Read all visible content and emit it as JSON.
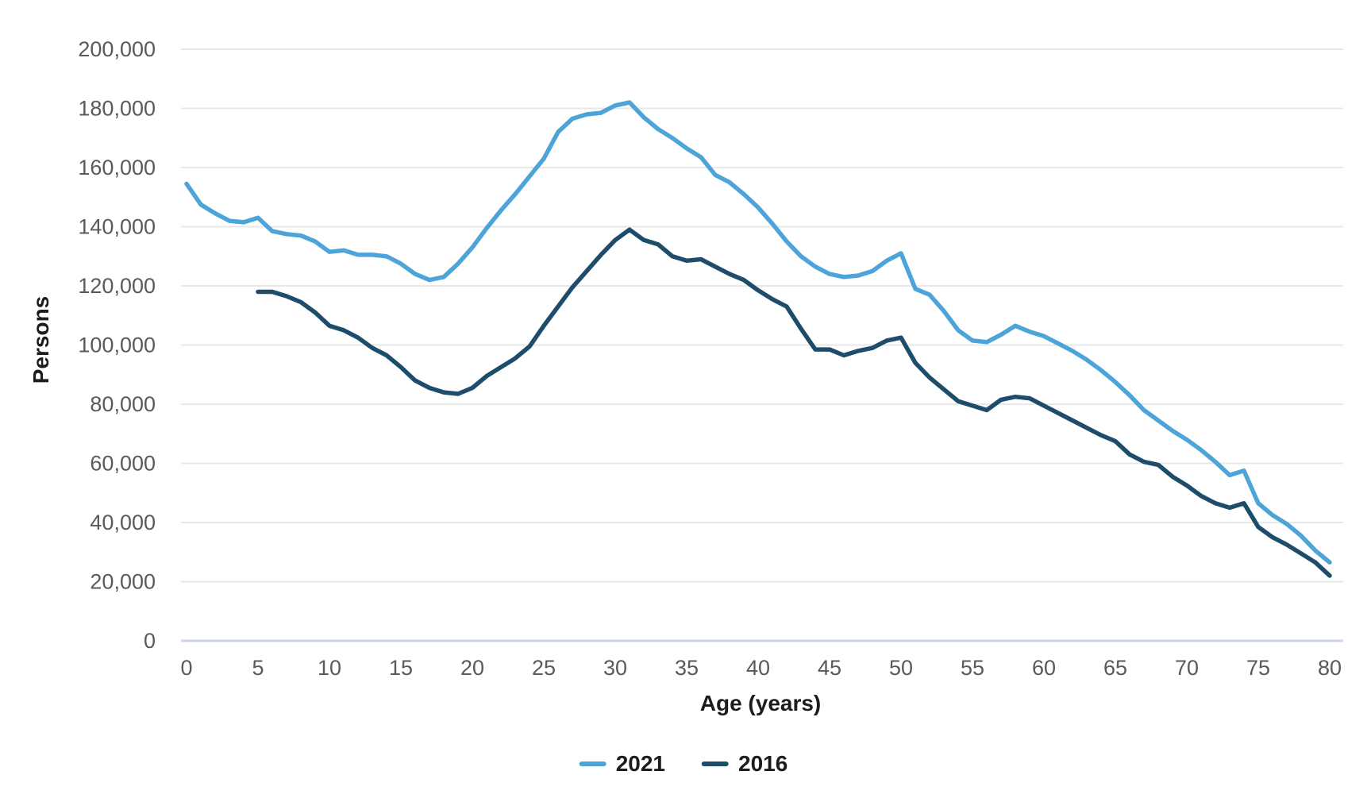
{
  "chart_data": {
    "type": "line",
    "title": "",
    "xlabel": "Age (years)",
    "ylabel": "Persons",
    "x_min": 0,
    "x_max": 80,
    "x_tick_step": 5,
    "x_ticks": [
      "0",
      "5",
      "10",
      "15",
      "20",
      "25",
      "30",
      "35",
      "40",
      "45",
      "50",
      "55",
      "60",
      "65",
      "70",
      "75",
      "80"
    ],
    "ylim": [
      0,
      200000
    ],
    "y_tick_step": 20000,
    "y_ticks": [
      "0",
      "20,000",
      "40,000",
      "60,000",
      "80,000",
      "100,000",
      "120,000",
      "140,000",
      "160,000",
      "180,000",
      "200,000"
    ],
    "grid": "horizontal",
    "legend_position": "bottom-center",
    "colors": {
      "gridline": "#e8e8e8",
      "zero_line": "#ccd5e8",
      "tick_text": "#5a5a5a",
      "title_text": "#1c1c1c"
    },
    "series": [
      {
        "name": "2021",
        "color": "#4da4d8",
        "values": [
          154500,
          147500,
          144500,
          142000,
          141500,
          143000,
          138500,
          137500,
          137000,
          135000,
          131500,
          132000,
          130500,
          130500,
          130000,
          127500,
          124000,
          122000,
          123000,
          127500,
          133000,
          139500,
          145500,
          151000,
          157000,
          163000,
          172000,
          176500,
          178000,
          178500,
          181000,
          182000,
          177000,
          173000,
          170000,
          166500,
          163500,
          157500,
          155000,
          151000,
          146500,
          141000,
          135000,
          130000,
          126500,
          124000,
          123000,
          123500,
          125000,
          128500,
          131000,
          119000,
          117000,
          111500,
          105000,
          101500,
          101000,
          103500,
          106500,
          104500,
          103000,
          100500,
          98000,
          95000,
          91500,
          87500,
          83000,
          78000,
          74500,
          71000,
          68000,
          64500,
          60500,
          56000,
          57500,
          46500,
          42500,
          39500,
          35500,
          30500,
          26500
        ]
      },
      {
        "name": "2016",
        "color": "#1d4d6b",
        "values": [
          null,
          null,
          null,
          null,
          null,
          118000,
          118000,
          116500,
          114500,
          111000,
          106500,
          105000,
          102500,
          99000,
          96500,
          92500,
          88000,
          85500,
          84000,
          83500,
          85500,
          89500,
          92500,
          95500,
          99500,
          106500,
          113000,
          119500,
          125000,
          130500,
          135500,
          139000,
          135500,
          134000,
          130000,
          128500,
          129000,
          126500,
          124000,
          122000,
          118500,
          115500,
          113000,
          105500,
          98500,
          98500,
          96500,
          98000,
          99000,
          101500,
          102500,
          94000,
          89000,
          85000,
          81000,
          79500,
          78000,
          81500,
          82500,
          82000,
          79500,
          77000,
          74500,
          72000,
          69500,
          67500,
          63000,
          60500,
          59500,
          55500,
          52500,
          49000,
          46500,
          45000,
          46500,
          38500,
          35000,
          32500,
          29500,
          26500,
          22000
        ]
      }
    ],
    "legend": [
      {
        "label": "2021",
        "color": "#4da4d8"
      },
      {
        "label": "2016",
        "color": "#1d4d6b"
      }
    ]
  }
}
